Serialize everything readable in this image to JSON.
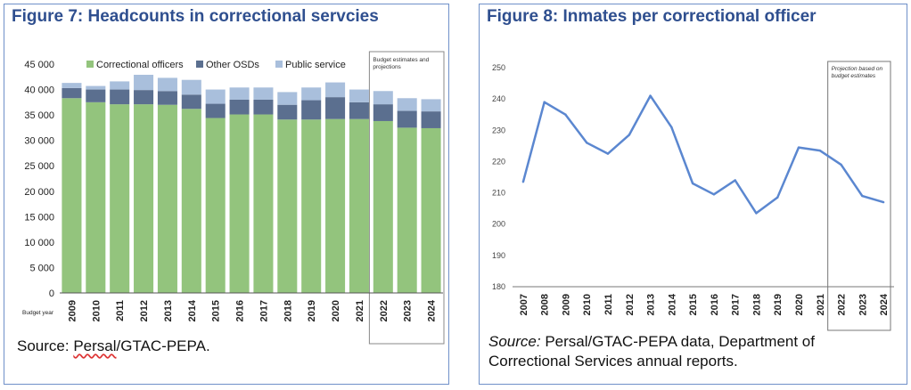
{
  "figure7": {
    "title": "Figure 7: Headcounts in correctional servcies",
    "source_prefix": "Source: ",
    "source_underlined": "Persal",
    "source_suffix": "/GTAC-PEPA.",
    "chart_data": {
      "type": "bar",
      "stacked": true,
      "categories": [
        "2009",
        "2010",
        "2011",
        "2012",
        "2013",
        "2014",
        "2015",
        "2016",
        "2017",
        "2018",
        "2019",
        "2020",
        "2021",
        "2022",
        "2023",
        "2024"
      ],
      "series": [
        {
          "name": "Correctional officers",
          "color": "#93c47d",
          "values": [
            38300,
            37500,
            37100,
            37100,
            37000,
            36200,
            34400,
            35100,
            35100,
            34100,
            34100,
            34200,
            34200,
            33800,
            32500,
            32400
          ]
        },
        {
          "name": "Other OSDs",
          "color": "#5b6f8f",
          "values": [
            2000,
            2500,
            2900,
            2800,
            2700,
            2800,
            2800,
            2900,
            2900,
            2900,
            3800,
            4300,
            3300,
            3300,
            3300,
            3300
          ]
        },
        {
          "name": "Public service",
          "color": "#a9bfdc",
          "values": [
            1000,
            700,
            1600,
            3000,
            2600,
            2900,
            2800,
            2400,
            2400,
            2500,
            2500,
            2900,
            2500,
            2600,
            2500,
            2400
          ]
        }
      ],
      "yticks": [
        "0",
        "5 000",
        "10 000",
        "15 000",
        "20 000",
        "25 000",
        "30 000",
        "35 000",
        "40 000",
        "45 000"
      ],
      "ylim": [
        0,
        45000
      ],
      "xlabel": "Budget year",
      "annotation": "Budget estimates and projections",
      "annotation_start": "2022",
      "legend_position": "top"
    }
  },
  "figure8": {
    "title": "Figure 8: Inmates per correctional officer",
    "source_italic": "Source:",
    "source_rest": " Persal/GTAC-PEPA data, Department of Correctional Services annual reports.",
    "chart_data": {
      "type": "line",
      "categories": [
        "2007",
        "2008",
        "2009",
        "2010",
        "2011",
        "2012",
        "2013",
        "2014",
        "2015",
        "2016",
        "2017",
        "2018",
        "2019",
        "2020",
        "2021",
        "2022",
        "2023",
        "2024"
      ],
      "series": [
        {
          "color": "#5b87d0",
          "values": [
            213.5,
            239,
            235,
            226,
            222.5,
            228.5,
            241,
            231,
            213,
            209.5,
            214,
            203.5,
            208.5,
            224.5,
            223.5,
            219,
            209,
            207
          ]
        }
      ],
      "yticks": [
        "180",
        "190",
        "200",
        "210",
        "220",
        "230",
        "240",
        "250"
      ],
      "ylim": [
        180,
        250
      ],
      "annotation": "Projection based on budget estimates",
      "annotation_start": "2022"
    }
  }
}
